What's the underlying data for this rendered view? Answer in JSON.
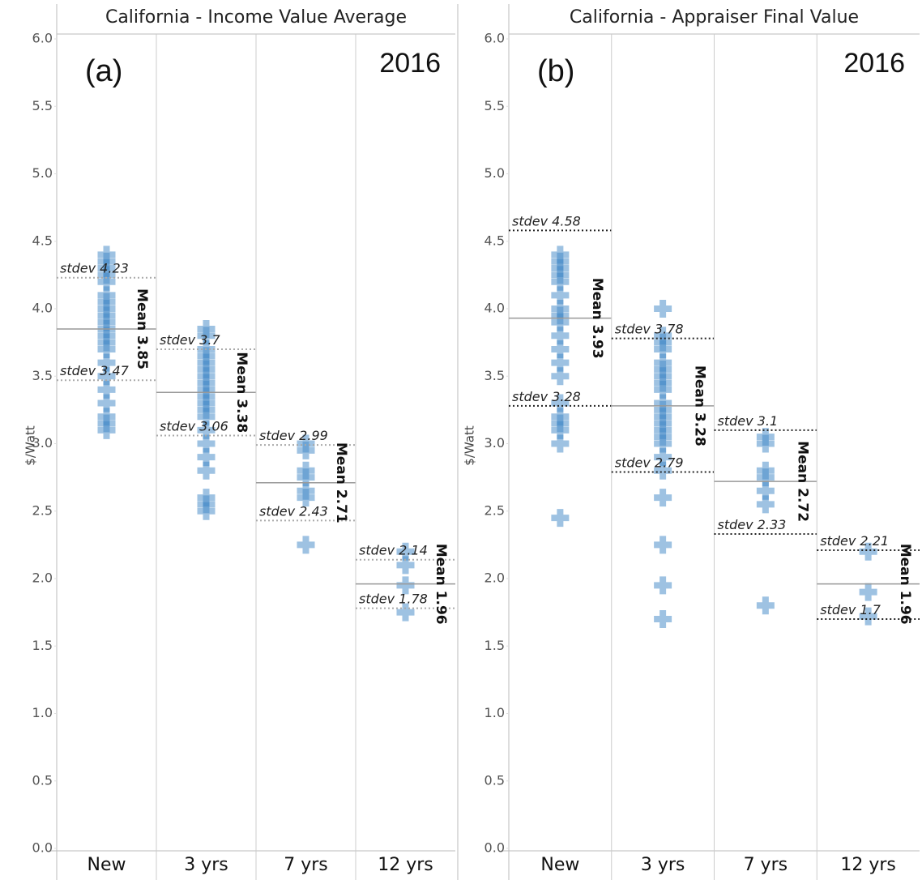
{
  "chart_data": [
    {
      "type": "strip",
      "title": "California - Income Value Average",
      "panel_label": "(a)",
      "year": "2016",
      "ylabel": "$/Watt",
      "categories": [
        "New",
        "3 yrs",
        "7 yrs",
        "12 yrs"
      ],
      "ylim": [
        0,
        6
      ],
      "yticks": [
        {
          "value": 0,
          "label": "0.0"
        },
        0.5,
        {
          "value": 1,
          "label": "1.0"
        },
        1.5,
        {
          "value": 2,
          "label": "2.0"
        },
        2.5,
        {
          "value": 3,
          "label": "3.0"
        },
        3.5,
        {
          "value": 4,
          "label": "4.0"
        },
        4.5,
        {
          "value": 5,
          "label": "5.0"
        },
        5.5,
        {
          "value": 6,
          "label": "6.0"
        }
      ],
      "color": "#3d85c6",
      "stdev_color": "#aaaaaa",
      "mean_label": "Mean",
      "stdev_label": "stdev",
      "values": [
        [
          4.4,
          4.35,
          4.3,
          4.25,
          4.2,
          4.1,
          4.05,
          4.0,
          3.95,
          3.9,
          3.85,
          3.8,
          3.75,
          3.7,
          3.6,
          3.5,
          3.4,
          3.3,
          3.2,
          3.15,
          3.1
        ],
        [
          3.85,
          3.8,
          3.7,
          3.65,
          3.6,
          3.55,
          3.5,
          3.45,
          3.4,
          3.35,
          3.3,
          3.25,
          3.2,
          3.1,
          3.0,
          2.9,
          2.8,
          2.6,
          2.55,
          2.5
        ],
        [
          3.0,
          2.95,
          2.8,
          2.75,
          2.65,
          2.6,
          2.25
        ],
        [
          2.2,
          2.1,
          1.95,
          1.75
        ]
      ],
      "stats": [
        {
          "mean": 3.85,
          "stdev_low": 3.47,
          "stdev_high": 4.23
        },
        {
          "mean": 3.38,
          "stdev_low": 3.06,
          "stdev_high": 3.7
        },
        {
          "mean": 2.71,
          "stdev_low": 2.43,
          "stdev_high": 2.99
        },
        {
          "mean": 1.96,
          "stdev_low": 1.78,
          "stdev_high": 2.14
        }
      ]
    },
    {
      "type": "strip",
      "title": "California - Appraiser Final Value",
      "panel_label": "(b)",
      "year": "2016",
      "ylabel": "$/Watt",
      "categories": [
        "New",
        "3 yrs",
        "7 yrs",
        "12 yrs"
      ],
      "ylim": [
        0,
        6
      ],
      "yticks": [
        {
          "value": 0,
          "label": "0.0"
        },
        0.5,
        {
          "value": 1,
          "label": "1.0"
        },
        1.5,
        {
          "value": 2,
          "label": "2.0"
        },
        2.5,
        {
          "value": 3,
          "label": "3.0"
        },
        3.5,
        {
          "value": 4,
          "label": "4.0"
        },
        4.5,
        {
          "value": 5,
          "label": "5.0"
        },
        5.5,
        {
          "value": 6,
          "label": "6.0"
        }
      ],
      "color": "#3d85c6",
      "stdev_color": "#222222",
      "mean_label": "Mean",
      "stdev_label": "stdev",
      "values": [
        [
          4.4,
          4.35,
          4.3,
          4.25,
          4.2,
          4.1,
          4.0,
          3.95,
          3.9,
          3.8,
          3.7,
          3.6,
          3.5,
          3.3,
          3.2,
          3.15,
          3.1,
          3.0,
          2.45
        ],
        [
          4.0,
          3.8,
          3.75,
          3.7,
          3.6,
          3.55,
          3.5,
          3.45,
          3.4,
          3.3,
          3.25,
          3.2,
          3.15,
          3.1,
          3.05,
          3.0,
          2.9,
          2.8,
          2.6,
          2.25,
          1.95,
          1.7
        ],
        [
          3.05,
          3.0,
          2.8,
          2.75,
          2.65,
          2.55,
          1.8
        ],
        [
          2.2,
          1.9,
          1.72
        ]
      ],
      "stats": [
        {
          "mean": 3.93,
          "stdev_low": 3.28,
          "stdev_high": 4.58
        },
        {
          "mean": 3.28,
          "stdev_low": 2.79,
          "stdev_high": 3.78
        },
        {
          "mean": 2.72,
          "stdev_low": 2.33,
          "stdev_high": 3.1
        },
        {
          "mean": 1.96,
          "stdev_low": 1.7,
          "stdev_high": 2.21
        }
      ]
    }
  ]
}
